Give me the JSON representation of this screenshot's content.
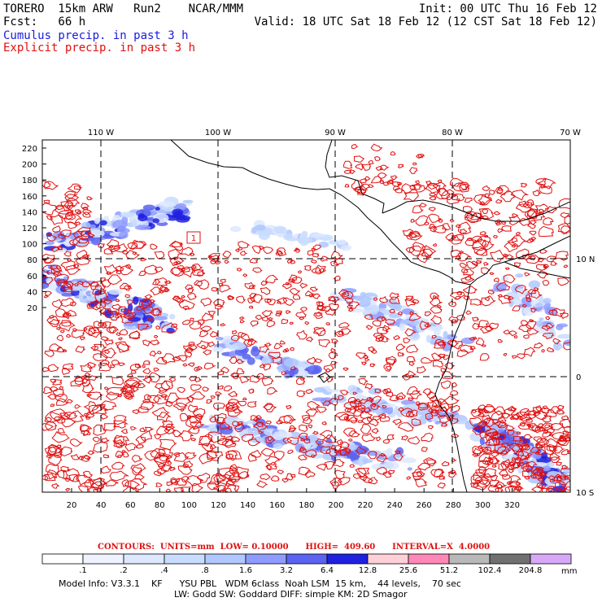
{
  "header": {
    "line1_left": "TORERO  15km ARW   Run2    NCAR/MMM",
    "line1_right": "Init: 00 UTC Thu 16 Feb 12",
    "line2_left": "Fcst:   66 h",
    "line2_right": "Valid: 18 UTC Sat 18 Feb 12 (12 CST Sat 18 Feb 12)",
    "line3": "Cumulus precip. in past 3 h",
    "line4": "Explicit precip. in past 3 h"
  },
  "colors": {
    "cumulus_text": "#1a1adc",
    "explicit_text": "#e01010",
    "contour_line": "#e01010",
    "coastline": "#000000"
  },
  "map": {
    "top_lon_labels": [
      "110 W",
      "100 W",
      "90 W",
      "80 W",
      "70 W"
    ],
    "right_lat_labels": [
      "10 N",
      "0",
      "10 S"
    ],
    "left_y_labels": [
      "220",
      "200",
      "180",
      "160",
      "140",
      "120",
      "100",
      "80",
      "60",
      "40",
      "20"
    ],
    "bottom_x_labels": [
      "20",
      "40",
      "60",
      "80",
      "100",
      "120",
      "140",
      "160",
      "180",
      "200",
      "220",
      "240",
      "260",
      "280",
      "300",
      "320"
    ],
    "contour_labels": [
      "1"
    ]
  },
  "contours_info": {
    "label": "CONTOURS:  UNITS=mm  LOW= 0.10000      HIGH=  409.60      INTERVAL=X  4.0000"
  },
  "colorbar": {
    "unit": "mm",
    "labels": [
      ".1",
      ".2",
      ".4",
      ".8",
      "1.6",
      "3.2",
      "6.4",
      "12.8",
      "25.6",
      "51.2",
      "102.4",
      "204.8"
    ],
    "colors": [
      "#ffffff",
      "#eef3ff",
      "#dde8ff",
      "#c8dcff",
      "#b0c8ff",
      "#8f9cff",
      "#5b63f0",
      "#2020e0",
      "#ffd0d8",
      "#ff88b8",
      "#b8b8b8",
      "#707070",
      "#d8a8f8"
    ]
  },
  "footer": {
    "line1": "Model Info: V3.3.1    KF      YSU PBL   WDM 6class  Noah LSM  15 km,    44 levels,    70 sec",
    "line2": "LW: Godd SW: Goddard DIFF: simple KM: 2D Smagor"
  }
}
